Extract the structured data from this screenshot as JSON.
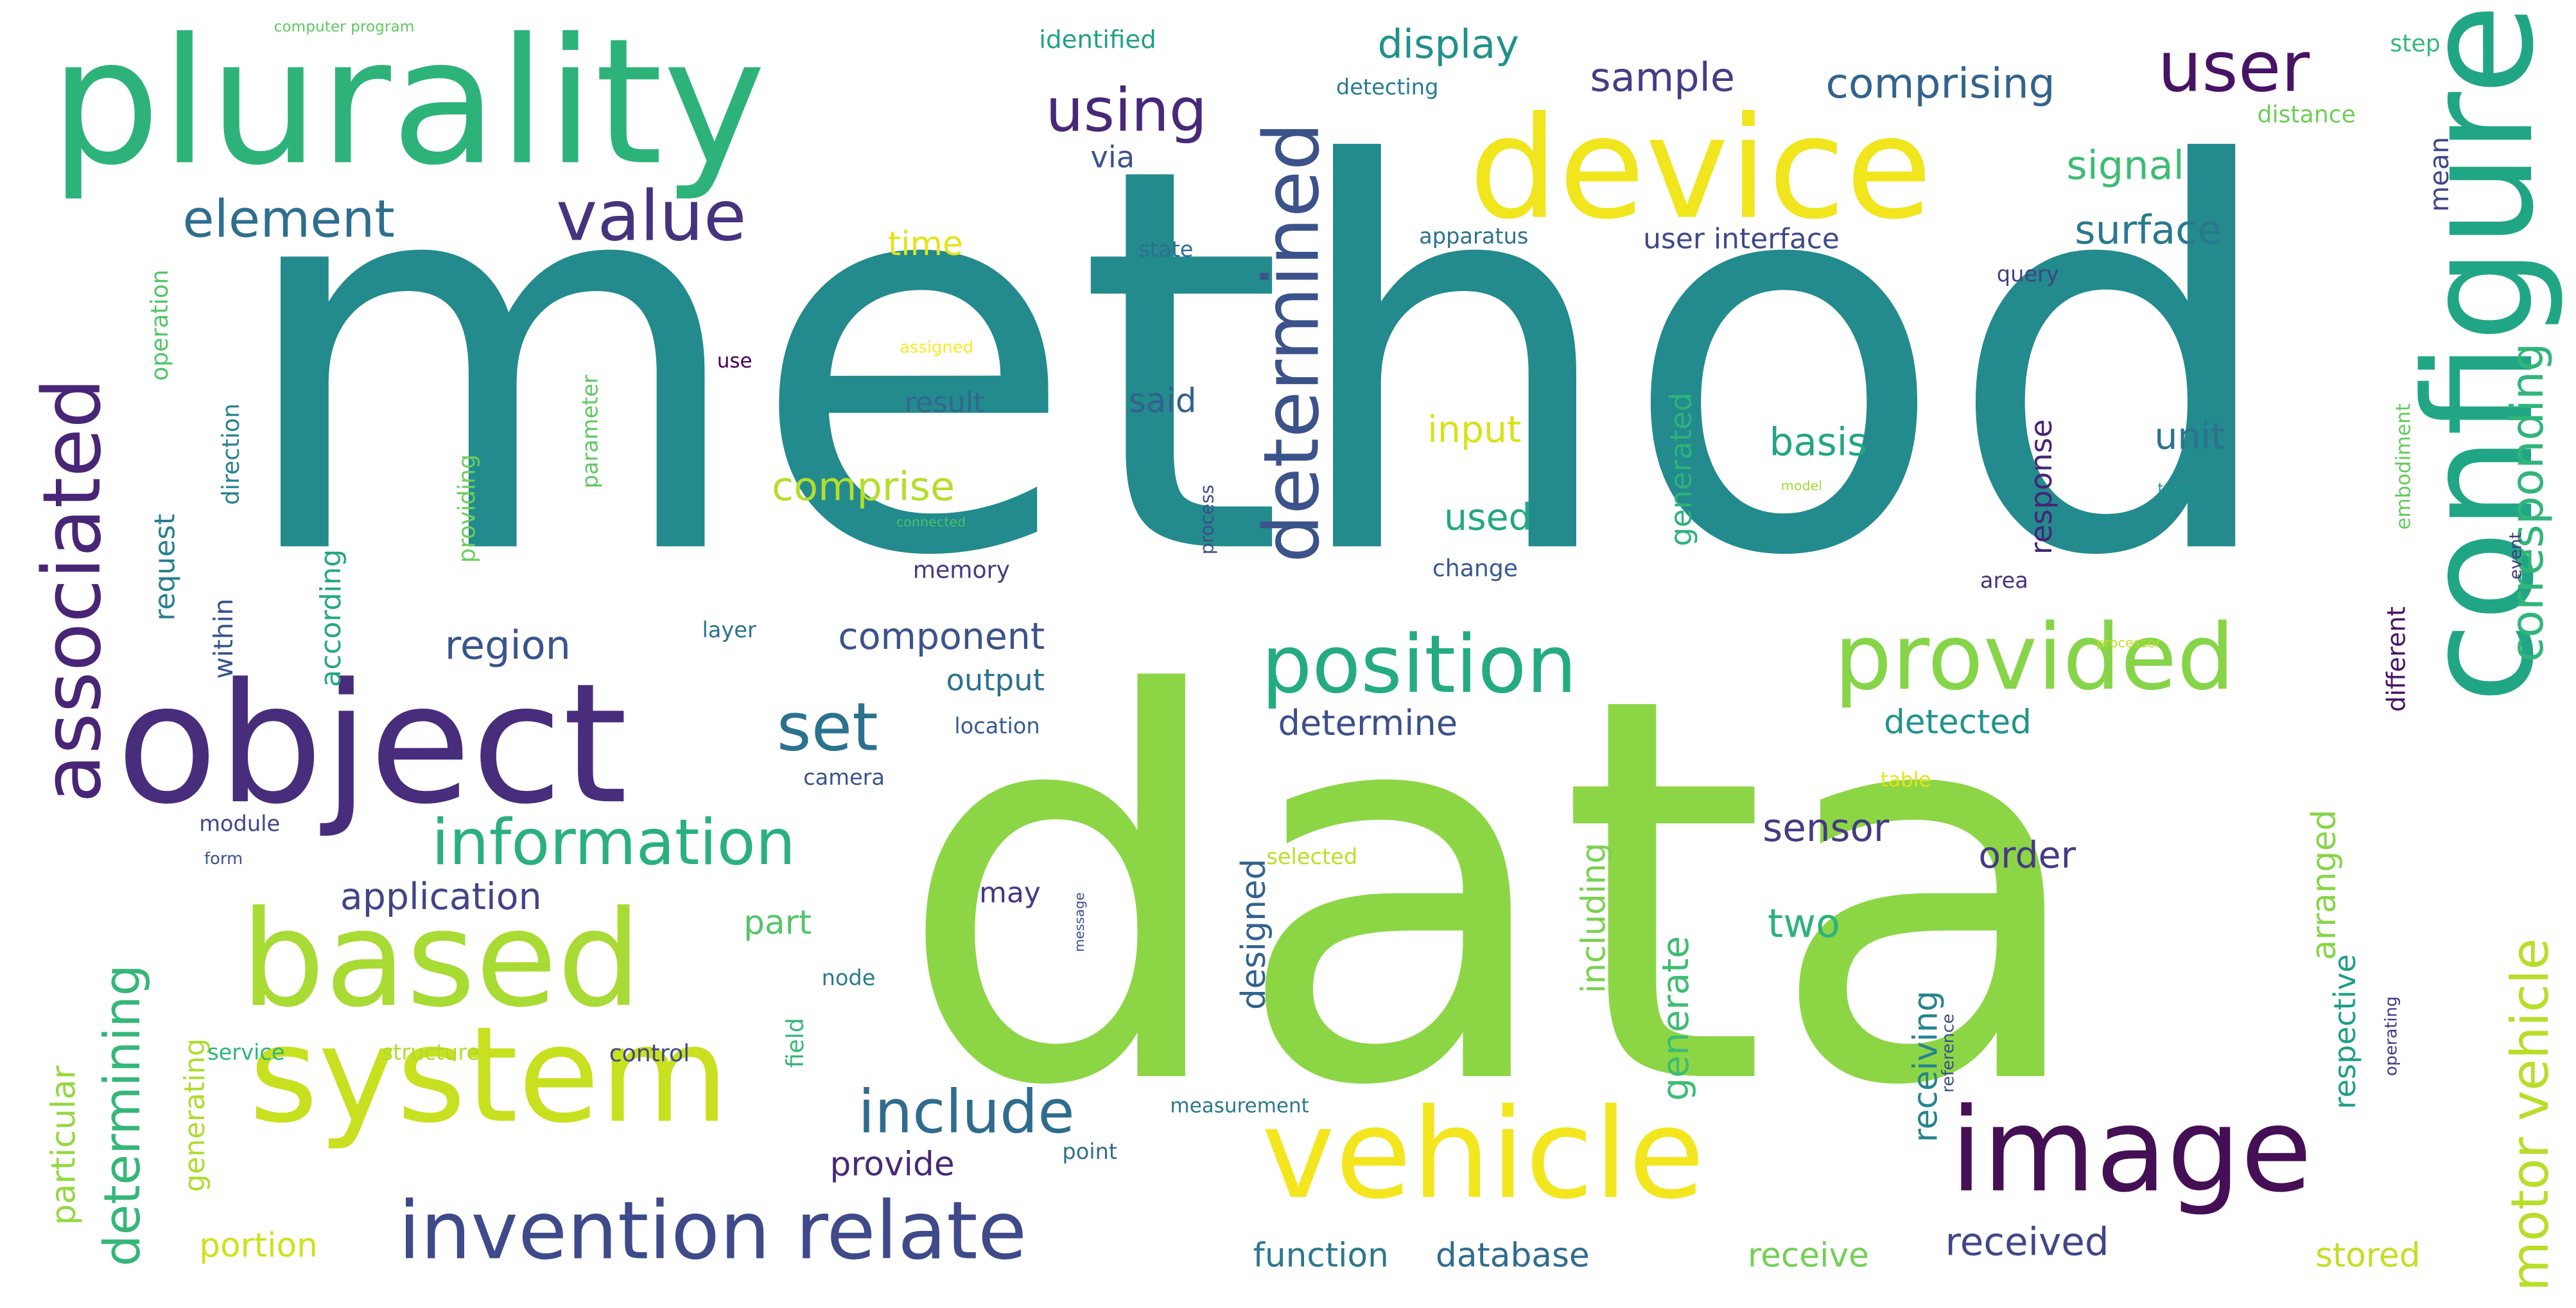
{
  "words": [
    {
      "text": "method",
      "color": "#238a8d",
      "vertical": false
    },
    {
      "text": "data",
      "color": "#8cd646",
      "vertical": false
    },
    {
      "text": "plurality",
      "color": "#2db37a",
      "vertical": false
    },
    {
      "text": "object",
      "color": "#472d7b",
      "vertical": false
    },
    {
      "text": "device",
      "color": "#f1e51d",
      "vertical": false
    },
    {
      "text": "configured",
      "color": "#21a685",
      "vertical": true
    },
    {
      "text": "system",
      "color": "#c8e020",
      "vertical": false
    },
    {
      "text": "based",
      "color": "#a8db34",
      "vertical": false
    },
    {
      "text": "vehicle",
      "color": "#f4e61e",
      "vertical": false
    },
    {
      "text": "image",
      "color": "#440f54",
      "vertical": false
    },
    {
      "text": "provided",
      "color": "#86d549",
      "vertical": false
    },
    {
      "text": "invention relate",
      "color": "#3e4a89",
      "vertical": false
    },
    {
      "text": "position",
      "color": "#25ab82",
      "vertical": false
    },
    {
      "text": "associated",
      "color": "#482576",
      "vertical": true
    },
    {
      "text": "determined",
      "color": "#3b528b",
      "vertical": true
    },
    {
      "text": "value",
      "color": "#46337e",
      "vertical": false
    },
    {
      "text": "user",
      "color": "#471365",
      "vertical": false
    },
    {
      "text": "information",
      "color": "#2ab07f",
      "vertical": false
    },
    {
      "text": "set",
      "color": "#2c728e",
      "vertical": false
    },
    {
      "text": "include",
      "color": "#2f6c8e",
      "vertical": false
    },
    {
      "text": "using",
      "color": "#482878",
      "vertical": false
    },
    {
      "text": "element",
      "color": "#2e6e8e",
      "vertical": false
    },
    {
      "text": "motor vehicle",
      "color": "#b8de29",
      "vertical": true
    },
    {
      "text": "corresponding",
      "color": "#31b57b",
      "vertical": true
    },
    {
      "text": "determining",
      "color": "#35b779",
      "vertical": true
    },
    {
      "text": "comprising",
      "color": "#33638d",
      "vertical": false
    },
    {
      "text": "display",
      "color": "#21918c",
      "vertical": false
    },
    {
      "text": "sample",
      "color": "#433e85",
      "vertical": false
    },
    {
      "text": "signal",
      "color": "#3dbc74",
      "vertical": false
    },
    {
      "text": "surface",
      "color": "#2a788e",
      "vertical": false
    },
    {
      "text": "comprise",
      "color": "#b5de2b",
      "vertical": false
    },
    {
      "text": "application",
      "color": "#414487",
      "vertical": false
    },
    {
      "text": "component",
      "color": "#3b528b",
      "vertical": false
    },
    {
      "text": "region",
      "color": "#3a548c",
      "vertical": false
    },
    {
      "text": "sensor",
      "color": "#443a83",
      "vertical": false
    },
    {
      "text": "received",
      "color": "#404688",
      "vertical": false
    },
    {
      "text": "order",
      "color": "#443b84",
      "vertical": false
    },
    {
      "text": "two",
      "color": "#2db27d",
      "vertical": false
    },
    {
      "text": "unit",
      "color": "#2c738e",
      "vertical": false
    },
    {
      "text": "basis",
      "color": "#21a585",
      "vertical": false
    },
    {
      "text": "used",
      "color": "#22a884",
      "vertical": false
    },
    {
      "text": "input",
      "color": "#d8e219",
      "vertical": false
    },
    {
      "text": "said",
      "color": "#34608d",
      "vertical": false
    },
    {
      "text": "detected",
      "color": "#20938c",
      "vertical": false
    },
    {
      "text": "determine",
      "color": "#3c508b",
      "vertical": false
    },
    {
      "text": "generate",
      "color": "#3fbc73",
      "vertical": true
    },
    {
      "text": "including",
      "color": "#7ad151",
      "vertical": true
    },
    {
      "text": "designed",
      "color": "#33638d",
      "vertical": true
    },
    {
      "text": "receiving",
      "color": "#25848e",
      "vertical": true
    },
    {
      "text": "response",
      "color": "#482475",
      "vertical": true
    },
    {
      "text": "generated",
      "color": "#2db27d",
      "vertical": true
    },
    {
      "text": "arranged",
      "color": "#86d549",
      "vertical": true
    },
    {
      "text": "respective",
      "color": "#1f9e89",
      "vertical": true
    },
    {
      "text": "stored",
      "color": "#c2df23",
      "vertical": false
    },
    {
      "text": "receive",
      "color": "#73d056",
      "vertical": false
    },
    {
      "text": "function",
      "color": "#2a788e",
      "vertical": false
    },
    {
      "text": "database",
      "color": "#2f6c8e",
      "vertical": false
    },
    {
      "text": "provide",
      "color": "#482878",
      "vertical": false
    },
    {
      "text": "portion",
      "color": "#d0e11c",
      "vertical": false
    },
    {
      "text": "output",
      "color": "#2c728e",
      "vertical": false
    },
    {
      "text": "part",
      "color": "#54c568",
      "vertical": false
    },
    {
      "text": "may",
      "color": "#453781",
      "vertical": false
    },
    {
      "text": "result",
      "color": "#31688e",
      "vertical": false
    },
    {
      "text": "time",
      "color": "#e5e419",
      "vertical": false
    },
    {
      "text": "via",
      "color": "#3b528b",
      "vertical": false
    },
    {
      "text": "user interface",
      "color": "#3e4989",
      "vertical": false
    },
    {
      "text": "particular",
      "color": "#95d840",
      "vertical": true
    },
    {
      "text": "generating",
      "color": "#addc30",
      "vertical": true
    },
    {
      "text": "request",
      "color": "#277f8e",
      "vertical": true
    },
    {
      "text": "within",
      "color": "#39558c",
      "vertical": true
    },
    {
      "text": "according",
      "color": "#22a785",
      "vertical": true
    },
    {
      "text": "direction",
      "color": "#26828e",
      "vertical": true
    },
    {
      "text": "operation",
      "color": "#52c569",
      "vertical": true
    },
    {
      "text": "providing",
      "color": "#6ccd5a",
      "vertical": true
    },
    {
      "text": "parameter",
      "color": "#5ec962",
      "vertical": true
    },
    {
      "text": "mean",
      "color": "#404688",
      "vertical": true
    },
    {
      "text": "different",
      "color": "#481467",
      "vertical": true
    },
    {
      "text": "embodiment",
      "color": "#65cb5e",
      "vertical": true
    },
    {
      "text": "event",
      "color": "#453882",
      "vertical": true
    },
    {
      "text": "field",
      "color": "#35b779",
      "vertical": true
    },
    {
      "text": "process",
      "color": "#3e4c8a",
      "vertical": true
    },
    {
      "text": "reference",
      "color": "#3c4f8a",
      "vertical": true
    },
    {
      "text": "operating",
      "color": "#443983",
      "vertical": true
    },
    {
      "text": "message",
      "color": "#3d4e8a",
      "vertical": true
    },
    {
      "text": "identified",
      "color": "#1fa287",
      "vertical": false
    },
    {
      "text": "step",
      "color": "#37b878",
      "vertical": false
    },
    {
      "text": "detecting",
      "color": "#287c8e",
      "vertical": false
    },
    {
      "text": "distance",
      "color": "#6ece58",
      "vertical": false
    },
    {
      "text": "apparatus",
      "color": "#2c718e",
      "vertical": false
    },
    {
      "text": "state",
      "color": "#2c718e",
      "vertical": false
    },
    {
      "text": "query",
      "color": "#414487",
      "vertical": false
    },
    {
      "text": "computer program",
      "color": "#5ec962",
      "vertical": false
    },
    {
      "text": "assigned",
      "color": "#fde725",
      "vertical": false
    },
    {
      "text": "use",
      "color": "#440154",
      "vertical": false
    },
    {
      "text": "model",
      "color": "#a0da39",
      "vertical": false
    },
    {
      "text": "target",
      "color": "#1f948c",
      "vertical": false
    },
    {
      "text": "connected",
      "color": "#4ac16d",
      "vertical": false
    },
    {
      "text": "memory",
      "color": "#443983",
      "vertical": false
    },
    {
      "text": "change",
      "color": "#38598c",
      "vertical": false
    },
    {
      "text": "area",
      "color": "#46327e",
      "vertical": false
    },
    {
      "text": "layer",
      "color": "#2d708e",
      "vertical": false
    },
    {
      "text": "processor",
      "color": "#bddf26",
      "vertical": false
    },
    {
      "text": "location",
      "color": "#38598c",
      "vertical": false
    },
    {
      "text": "camera",
      "color": "#3b528b",
      "vertical": false
    },
    {
      "text": "table",
      "color": "#e2e418",
      "vertical": false
    },
    {
      "text": "module",
      "color": "#3f4788",
      "vertical": false
    },
    {
      "text": "form",
      "color": "#3a548c",
      "vertical": false
    },
    {
      "text": "selected",
      "color": "#bbdf27",
      "vertical": false
    },
    {
      "text": "node",
      "color": "#297a8e",
      "vertical": false
    },
    {
      "text": "service",
      "color": "#2fb47c",
      "vertical": false
    },
    {
      "text": "structure",
      "color": "#addc30",
      "vertical": false
    },
    {
      "text": "control",
      "color": "#3f4889",
      "vertical": false
    },
    {
      "text": "measurement",
      "color": "#2a778e",
      "vertical": false
    },
    {
      "text": "point",
      "color": "#2e6f8e",
      "vertical": false
    }
  ]
}
